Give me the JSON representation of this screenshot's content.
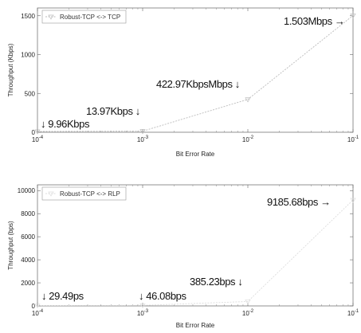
{
  "chart_data": [
    {
      "type": "line",
      "xscale": "log",
      "xlim": [
        0.0001,
        0.1
      ],
      "ylim": [
        0,
        1600
      ],
      "x_ticks": [
        0.0001,
        0.001,
        0.01,
        0.1
      ],
      "x_tick_labels": [
        {
          "base": "10",
          "exp": "-4"
        },
        {
          "base": "10",
          "exp": "-3"
        },
        {
          "base": "10",
          "exp": "-2"
        },
        {
          "base": "10",
          "exp": "-1"
        }
      ],
      "y_ticks": [
        0,
        500,
        1000,
        1500
      ],
      "y_tick_labels": [
        "0",
        "500",
        "1000",
        "1500"
      ],
      "xlabel": "Bit Error Rate",
      "ylabel": "Throughput (Kbps)",
      "legend_position": "top-left",
      "series": [
        {
          "name": "Robust-TCP <-> TCP",
          "color": "#bbbbbb",
          "x": [
            0.0001,
            0.001,
            0.01,
            0.1
          ],
          "y": [
            9.96,
            13.97,
            422.97,
            1503
          ]
        }
      ],
      "annotations": [
        "↓ 9.96Kbps",
        "13.97Kbps ↓",
        "422.97KbpsMbps ↓",
        "1.503Mbps →"
      ]
    },
    {
      "type": "line",
      "xscale": "log",
      "xlim": [
        0.0001,
        0.1
      ],
      "ylim": [
        0,
        10500
      ],
      "x_ticks": [
        0.0001,
        0.001,
        0.01,
        0.1
      ],
      "x_tick_labels": [
        {
          "base": "10",
          "exp": "-4"
        },
        {
          "base": "10",
          "exp": "-3"
        },
        {
          "base": "10",
          "exp": "-2"
        },
        {
          "base": "10",
          "exp": "-1"
        }
      ],
      "y_ticks": [
        0,
        2000,
        4000,
        6000,
        8000,
        10000
      ],
      "y_tick_labels": [
        "0",
        "2000",
        "4000",
        "6000",
        "8000",
        "10000"
      ],
      "xlabel": "Bit Error Rate",
      "ylabel": "Throughput (bps)",
      "legend_position": "top-left",
      "series": [
        {
          "name": "Robust-TCP <-> RLP",
          "color": "#dddddd",
          "x": [
            0.0001,
            0.001,
            0.01,
            0.1
          ],
          "y": [
            29.49,
            46.08,
            385.23,
            9185.68
          ]
        }
      ],
      "annotations": [
        "↓ 29.49ps",
        "↓ 46.08bps",
        "385.23bps ↓",
        "9185.68bps →"
      ]
    }
  ]
}
